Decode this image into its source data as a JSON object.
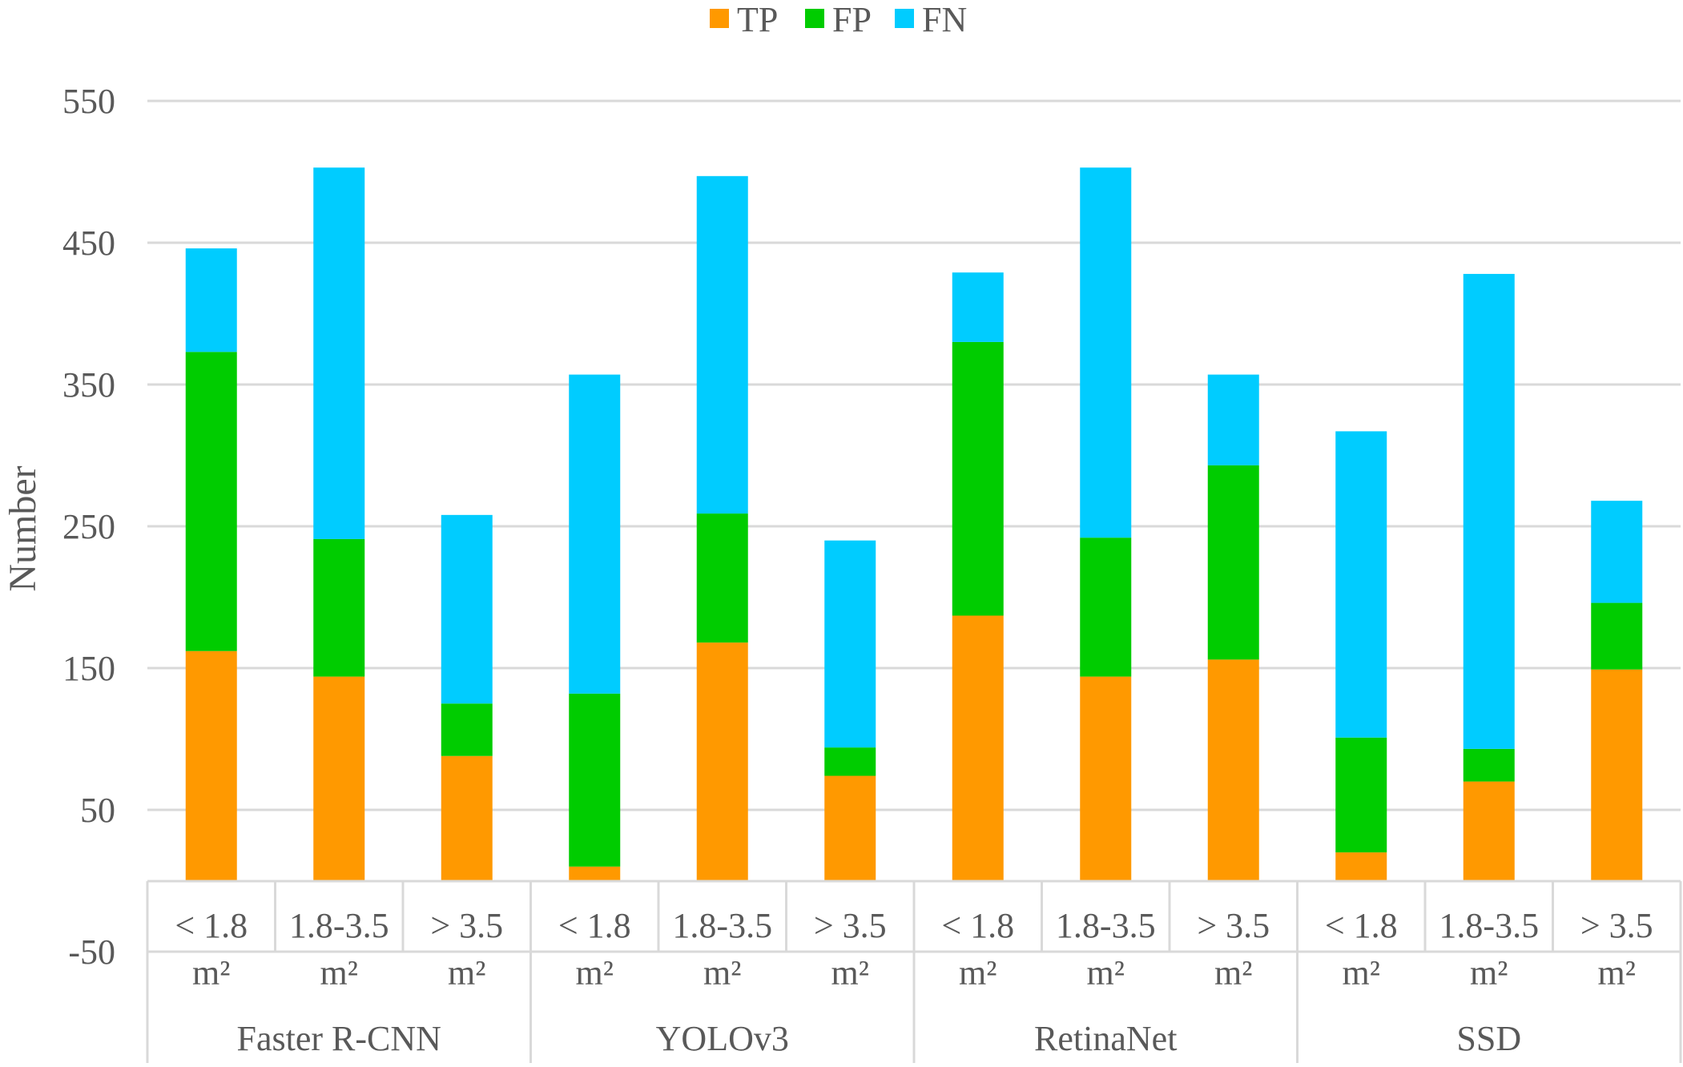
{
  "chart_data": {
    "type": "bar",
    "stacked": true,
    "title": "",
    "xlabel": "",
    "ylabel": "Number",
    "ylim": [
      -50,
      550
    ],
    "yticks": [
      -50,
      50,
      150,
      250,
      350,
      450,
      550
    ],
    "grid": true,
    "legend_position": "top-center",
    "groups": [
      {
        "name": "Faster R-CNN"
      },
      {
        "name": "YOLOv3"
      },
      {
        "name": "RetinaNet"
      },
      {
        "name": "SSD"
      }
    ],
    "categories": [
      {
        "group": 0,
        "line1": "< 1.8",
        "line2": "m²"
      },
      {
        "group": 0,
        "line1": "1.8-3.5",
        "line2": "m²"
      },
      {
        "group": 0,
        "line1": "> 3.5",
        "line2": "m²"
      },
      {
        "group": 1,
        "line1": "< 1.8",
        "line2": "m²"
      },
      {
        "group": 1,
        "line1": "1.8-3.5",
        "line2": "m²"
      },
      {
        "group": 1,
        "line1": "> 3.5",
        "line2": "m²"
      },
      {
        "group": 2,
        "line1": "< 1.8",
        "line2": "m²"
      },
      {
        "group": 2,
        "line1": "1.8-3.5",
        "line2": "m²"
      },
      {
        "group": 2,
        "line1": "> 3.5",
        "line2": "m²"
      },
      {
        "group": 3,
        "line1": "< 1.8",
        "line2": "m²"
      },
      {
        "group": 3,
        "line1": "1.8-3.5",
        "line2": "m²"
      },
      {
        "group": 3,
        "line1": "> 3.5",
        "line2": "m²"
      }
    ],
    "series": [
      {
        "name": "TP",
        "color": "#FF9900",
        "values": [
          162,
          144,
          88,
          10,
          168,
          74,
          187,
          144,
          156,
          20,
          70,
          149
        ]
      },
      {
        "name": "FP",
        "color": "#00CC00",
        "values": [
          211,
          97,
          37,
          122,
          91,
          20,
          193,
          98,
          137,
          81,
          23,
          47
        ]
      },
      {
        "name": "FN",
        "color": "#00CCFF",
        "values": [
          73,
          262,
          133,
          225,
          238,
          146,
          49,
          261,
          64,
          216,
          335,
          72
        ]
      }
    ]
  }
}
